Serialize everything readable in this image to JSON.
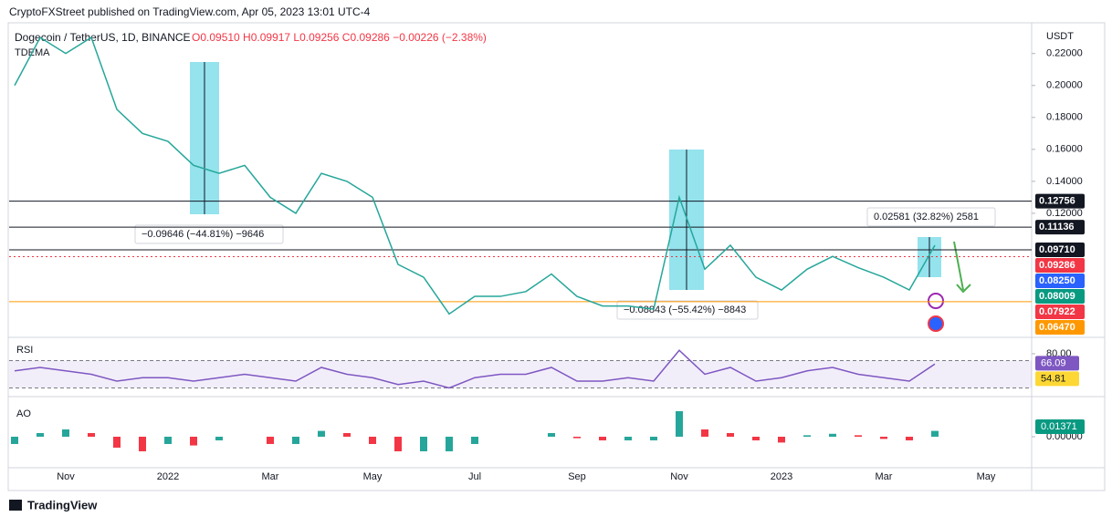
{
  "header": {
    "publisher": "CryptoFXStreet published on TradingView.com, Apr 05, 2023 13:01 UTC-4"
  },
  "footer": {
    "brand": "TradingView"
  },
  "annotations": [
    "−0.09646 (−44.81%) −9646",
    "−0.08843 (−55.42%) −8843",
    "0.02581 (32.82%) 2581"
  ],
  "chart_data": [
    {
      "type": "line",
      "title": "Dogecoin / TetherUS, 1D, BINANCE",
      "quote": "O0.09510  H0.09917  L0.09256  C0.09286  −0.00226 (−2.38%)",
      "indicator": "TDEMA",
      "axis_unit": "USDT",
      "color": "#26a69a",
      "categories": [
        null,
        null,
        "Nov",
        null,
        null,
        null,
        "2022",
        null,
        null,
        null,
        "Mar",
        null,
        null,
        null,
        "May",
        null,
        null,
        null,
        "Jul",
        null,
        null,
        null,
        "Sep",
        null,
        null,
        null,
        "Nov",
        null,
        null,
        null,
        "2023",
        null,
        null,
        null,
        "Mar",
        null,
        null,
        null,
        "May"
      ],
      "values": [
        0.2,
        0.23,
        0.22,
        0.23,
        0.185,
        0.17,
        0.165,
        0.15,
        0.145,
        0.15,
        0.13,
        0.12,
        0.145,
        0.14,
        0.13,
        0.088,
        0.08,
        0.057,
        0.068,
        0.068,
        0.071,
        0.082,
        0.068,
        0.062,
        0.062,
        0.06,
        0.13,
        0.085,
        0.1,
        0.08,
        0.072,
        0.085,
        0.093,
        0.086,
        0.08,
        0.072,
        0.1,
        null,
        null
      ],
      "ylim": [
        0.0435,
        0.2375
      ],
      "yticks": [
        {
          "value": 0.22,
          "label": "0.22000"
        },
        {
          "value": 0.2,
          "label": "0.20000"
        },
        {
          "value": 0.18,
          "label": "0.18000"
        },
        {
          "value": 0.16,
          "label": "0.16000"
        },
        {
          "value": 0.14,
          "label": "0.14000"
        },
        {
          "value": 0.12,
          "label": "0.12000"
        }
      ],
      "levels": [
        {
          "value": 0.12756,
          "label": "0.12756",
          "color": "#131722",
          "line": "solid"
        },
        {
          "value": 0.11136,
          "label": "0.11136",
          "color": "#131722",
          "line": "solid"
        },
        {
          "value": 0.0971,
          "label": "0.09710",
          "color": "#131722",
          "line": "solid"
        },
        {
          "value": 0.09286,
          "label": "0.09286",
          "color": "#f23645",
          "line": "dotted"
        },
        {
          "value": 0.0825,
          "label": "0.08250",
          "color": "#2962ff",
          "line": "none"
        },
        {
          "value": 0.08009,
          "label": "0.08009",
          "color": "#089981",
          "line": "none"
        },
        {
          "value": 0.07922,
          "label": "0.07922",
          "color": "#f23645",
          "line": "none"
        },
        {
          "value": 0.0647,
          "label": "0.06470",
          "color": "#ff9800",
          "line": "solid"
        }
      ]
    },
    {
      "type": "line",
      "title": "RSI",
      "color": "#7e57c2",
      "values": [
        55,
        60,
        55,
        50,
        40,
        45,
        45,
        40,
        45,
        50,
        45,
        40,
        60,
        50,
        45,
        35,
        40,
        30,
        45,
        50,
        50,
        60,
        40,
        40,
        45,
        40,
        85,
        50,
        60,
        40,
        45,
        55,
        60,
        50,
        45,
        40,
        65,
        null,
        null
      ],
      "ylim": [
        21.3,
        97.3
      ],
      "yticks": [
        {
          "value": 80,
          "label": "80.00"
        }
      ],
      "bands": [
        70,
        30
      ],
      "last": [
        {
          "value": 66.09,
          "color": "#7e57c2"
        },
        {
          "value": 54.81,
          "color": "#fdd835"
        }
      ]
    },
    {
      "type": "bar",
      "title": "AO",
      "values": [
        -0.01,
        0.005,
        0.01,
        0.005,
        -0.015,
        -0.02,
        -0.01,
        -0.012,
        -0.005,
        0.0,
        -0.01,
        -0.01,
        0.008,
        0.005,
        -0.01,
        -0.02,
        -0.02,
        -0.02,
        -0.01,
        0.0,
        0.0,
        0.005,
        -0.002,
        -0.005,
        -0.005,
        -0.005,
        0.035,
        0.01,
        0.005,
        -0.005,
        -0.008,
        0.002,
        0.004,
        0.002,
        -0.003,
        -0.005,
        0.008,
        null,
        null
      ],
      "ylim": [
        -0.0388,
        0.0425
      ],
      "yticks": [
        {
          "value": 0,
          "label": "0.00000"
        }
      ],
      "last": [
        {
          "value": 0.01371,
          "label": "0.01371",
          "color": "#089981"
        }
      ]
    }
  ]
}
